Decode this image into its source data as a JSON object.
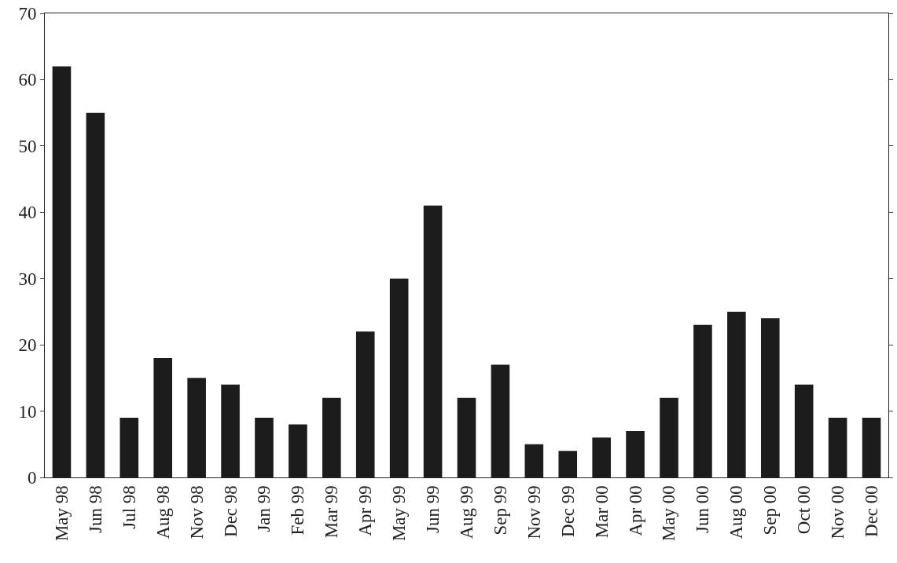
{
  "chart_data": {
    "type": "bar",
    "categories": [
      "May 98",
      "Jun 98",
      "Jul 98",
      "Aug 98",
      "Nov 98",
      "Dec 98",
      "Jan 99",
      "Feb 99",
      "Mar 99",
      "Apr 99",
      "May 99",
      "Jun 99",
      "Aug 99",
      "Sep 99",
      "Nov 99",
      "Dec 99",
      "Mar 00",
      "Apr 00",
      "May 00",
      "Jun 00",
      "Aug 00",
      "Sep 00",
      "Oct 00",
      "Nov 00",
      "Dec 00"
    ],
    "values": [
      62,
      55,
      9,
      18,
      15,
      14,
      9,
      8,
      12,
      22,
      30,
      41,
      12,
      17,
      5,
      4,
      6,
      7,
      12,
      23,
      25,
      24,
      14,
      9,
      9
    ],
    "color": "#1c1c1c",
    "ylim": [
      0,
      70
    ],
    "yticks": [
      0,
      10,
      20,
      30,
      40,
      50,
      60,
      70
    ],
    "legend": false
  }
}
